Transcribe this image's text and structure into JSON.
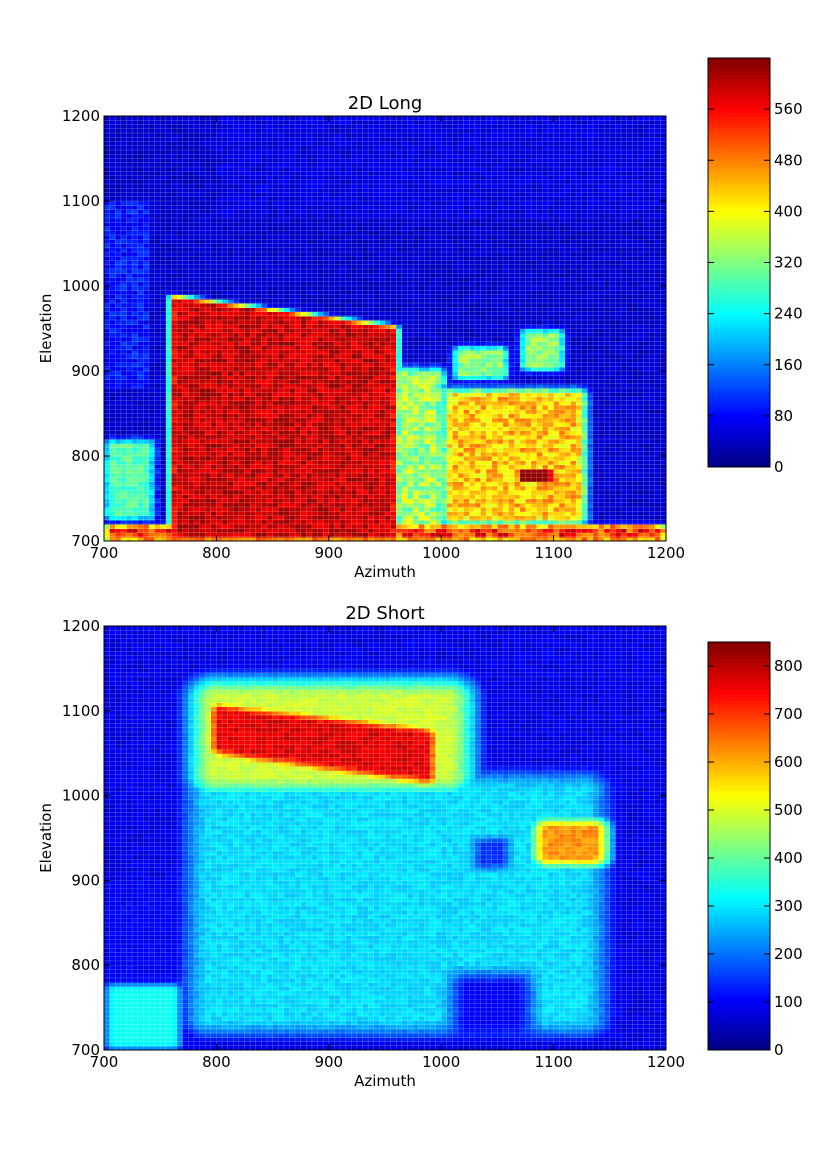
{
  "chart_data": [
    {
      "type": "heatmap",
      "title": "2D Long",
      "xlabel": "Azimuth",
      "ylabel": "Elevation",
      "xlim": [
        700,
        1200
      ],
      "ylim": [
        700,
        1200
      ],
      "xticks": [
        700,
        800,
        900,
        1000,
        1100,
        1200
      ],
      "yticks": [
        700,
        800,
        900,
        1000,
        1100,
        1200
      ],
      "colormap": "jet",
      "color_range": [
        0,
        640
      ],
      "colorbar_ticks": [
        0,
        80,
        160,
        240,
        320,
        400,
        480,
        560
      ],
      "grid": true,
      "bin_size": 5,
      "regions": [
        {
          "name": "main block",
          "x": [
            760,
            960
          ],
          "y": [
            700,
            985
          ],
          "value": 600
        },
        {
          "name": "right block",
          "x": [
            1000,
            1140
          ],
          "y": [
            720,
            880
          ],
          "value": 430
        },
        {
          "name": "hot spot",
          "x": [
            1070,
            1100
          ],
          "y": [
            770,
            785
          ],
          "value": 620
        },
        {
          "name": "left strip",
          "x": [
            700,
            740
          ],
          "y": [
            730,
            820
          ],
          "value": 300
        },
        {
          "name": "bottom strip",
          "x": [
            700,
            1200
          ],
          "y": [
            700,
            720
          ],
          "value": 500
        },
        {
          "name": "middle band",
          "x": [
            960,
            1000
          ],
          "y": [
            700,
            900
          ],
          "value": 350
        },
        {
          "name": "blobs",
          "x": [
            1010,
            1110
          ],
          "y": [
            890,
            950
          ],
          "value": 320
        },
        {
          "name": "background",
          "x": [
            700,
            1200
          ],
          "y": [
            700,
            1200
          ],
          "value": 40
        }
      ]
    },
    {
      "type": "heatmap",
      "title": "2D Short",
      "xlabel": "Azimuth",
      "ylabel": "Elevation",
      "xlim": [
        700,
        1200
      ],
      "ylim": [
        700,
        1200
      ],
      "xticks": [
        700,
        800,
        900,
        1000,
        1100,
        1200
      ],
      "yticks": [
        700,
        800,
        900,
        1000,
        1100,
        1200
      ],
      "colormap": "jet",
      "color_range": [
        0,
        850
      ],
      "colorbar_ticks": [
        0,
        100,
        200,
        300,
        400,
        500,
        600,
        700,
        800
      ],
      "grid": true,
      "bin_size": 5,
      "regions": [
        {
          "name": "hot band",
          "x": [
            800,
            1000
          ],
          "y": [
            1020,
            1110
          ],
          "value": 780
        },
        {
          "name": "right hot",
          "x": [
            1080,
            1140
          ],
          "y": [
            920,
            970
          ],
          "value": 600
        },
        {
          "name": "main area",
          "x": [
            760,
            1150
          ],
          "y": [
            720,
            1020
          ],
          "value": 290
        },
        {
          "name": "dark blob",
          "x": [
            1010,
            1080
          ],
          "y": [
            720,
            790
          ],
          "value": 100
        },
        {
          "name": "small dark blob",
          "x": [
            1030,
            1060
          ],
          "y": [
            920,
            950
          ],
          "value": 150
        },
        {
          "name": "background",
          "x": [
            700,
            1200
          ],
          "y": [
            700,
            1200
          ],
          "value": 90
        }
      ]
    }
  ]
}
